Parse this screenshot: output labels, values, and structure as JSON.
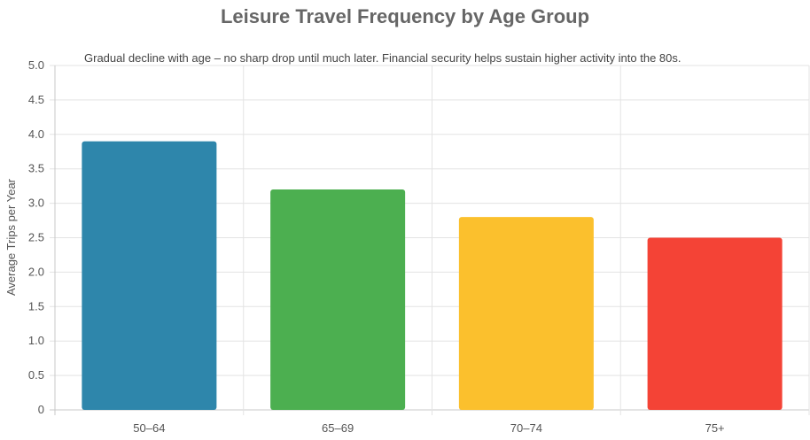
{
  "chart_data": {
    "type": "bar",
    "title": "Leisure Travel Frequency by Age Group",
    "annotation": "Gradual decline with age – no sharp drop until much later. Financial security helps sustain higher activity into the 80s.",
    "xlabel": "",
    "ylabel": "Average Trips per Year",
    "categories": [
      "50–64",
      "65–69",
      "70–74",
      "75+"
    ],
    "values": [
      3.9,
      3.2,
      2.8,
      2.5
    ],
    "colors": [
      "#2e86ab",
      "#4caf50",
      "#fbc02d",
      "#f44336"
    ],
    "ylim": [
      0,
      5
    ],
    "yticks": [
      0,
      0.5,
      1.0,
      1.5,
      2.0,
      2.5,
      3.0,
      3.5,
      4.0,
      4.5,
      5.0
    ],
    "ytick_labels": [
      "0",
      "0.5",
      "1.0",
      "1.5",
      "2.0",
      "2.5",
      "3.0",
      "3.5",
      "4.0",
      "4.5",
      "5.0"
    ],
    "grid": true,
    "legend": "none"
  }
}
